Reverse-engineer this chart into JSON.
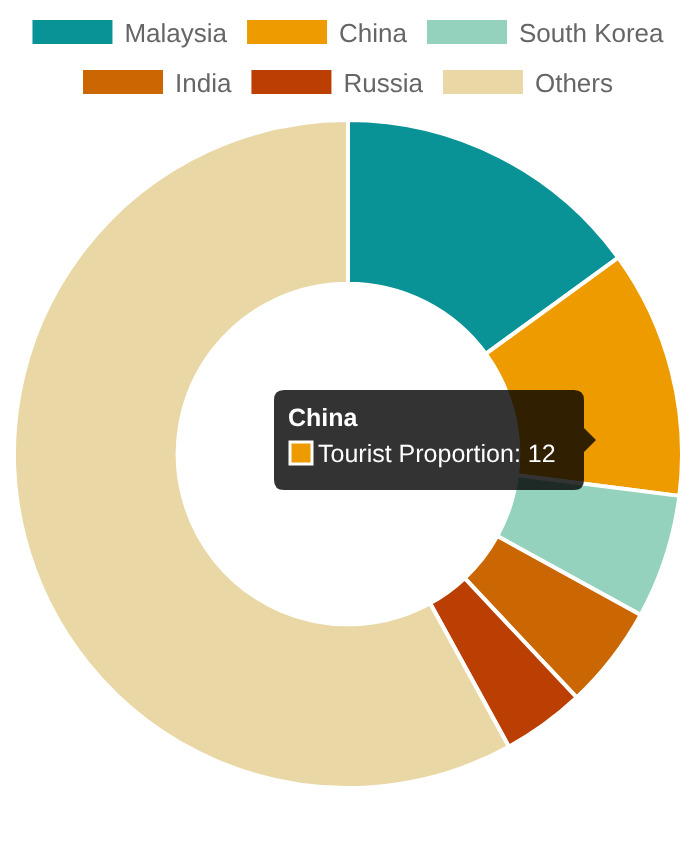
{
  "chart_data": {
    "type": "donut",
    "categories": [
      "Malaysia",
      "China",
      "South Korea",
      "India",
      "Russia",
      "Others"
    ],
    "values": [
      15,
      12,
      6,
      5,
      4,
      58
    ],
    "colors": [
      "#0a9396",
      "#ee9b00",
      "#94d2bd",
      "#ca6702",
      "#bb3e03",
      "#e9d8a6"
    ],
    "legend": "top",
    "annotations": [
      "China",
      "Tourist Proportion: 12"
    ]
  }
}
